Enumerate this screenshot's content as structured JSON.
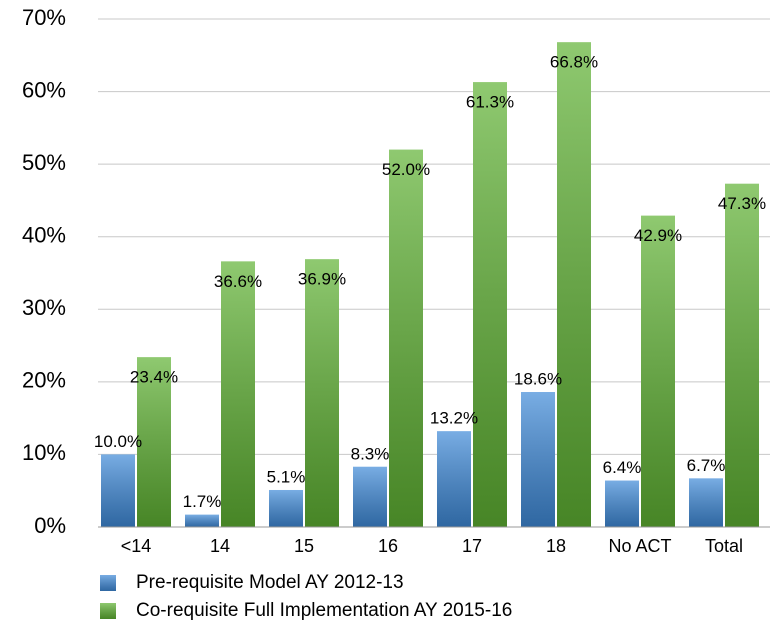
{
  "chart_data": {
    "type": "bar",
    "categories": [
      "<14",
      "14",
      "15",
      "16",
      "17",
      "18",
      "No ACT",
      "Total"
    ],
    "series": [
      {
        "name": "Pre-requisite Model AY 2012-13",
        "color": "#3f8ad8",
        "values": [
          10.0,
          1.7,
          5.1,
          8.3,
          13.2,
          18.6,
          6.4,
          6.7
        ],
        "value_labels": [
          "10.0%",
          "1.7%",
          "5.1%",
          "8.3%",
          "13.2%",
          "18.6%",
          "6.4%",
          "6.7%"
        ]
      },
      {
        "name": "Co-requisite Full Implementation AY  2015-16",
        "color": "#5fb233",
        "values": [
          23.4,
          36.6,
          36.9,
          52.0,
          61.3,
          66.8,
          42.9,
          47.3
        ],
        "value_labels": [
          "23.4%",
          "36.6%",
          "36.9%",
          "52.0%",
          "61.3%",
          "66.8%",
          "42.9%",
          "47.3%"
        ]
      }
    ],
    "ylim": [
      0,
      70
    ],
    "yticks": [
      {
        "value": 0,
        "label": "0%"
      },
      {
        "value": 10,
        "label": "10%"
      },
      {
        "value": 20,
        "label": "20%"
      },
      {
        "value": 30,
        "label": "30%"
      },
      {
        "value": 40,
        "label": "40%"
      },
      {
        "value": 50,
        "label": "50%"
      },
      {
        "value": 60,
        "label": "60%"
      },
      {
        "value": 70,
        "label": "70%"
      }
    ],
    "grid": true,
    "legend": "bottom"
  }
}
